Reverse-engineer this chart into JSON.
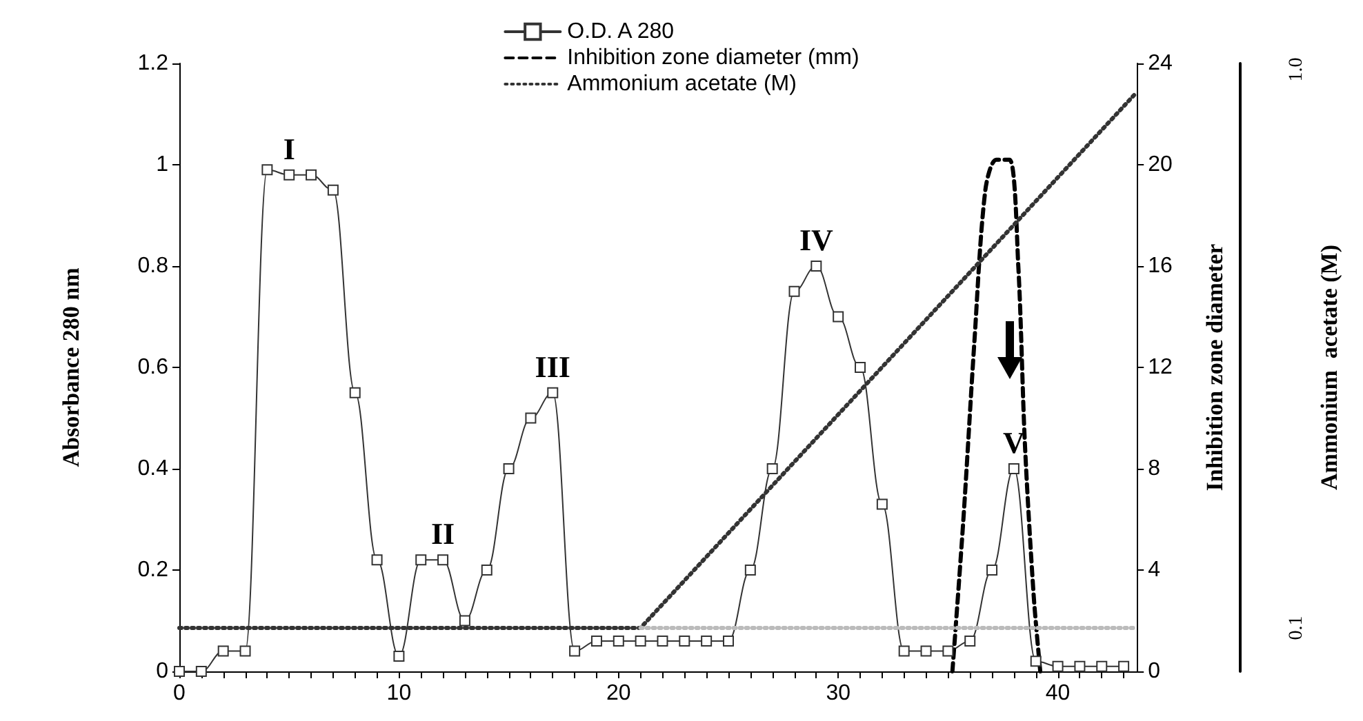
{
  "chart_data": {
    "type": "line",
    "ylabel": "Absorbance 280 nm",
    "y2label": "Inhibition zone diameter",
    "y3label": "Ammonium  acetate (M)",
    "xlim": [
      0,
      43.6
    ],
    "xticks": [
      0,
      10,
      20,
      30,
      40
    ],
    "ylim": [
      0,
      1.2
    ],
    "yticks": [
      0,
      0.2,
      0.4,
      0.6,
      0.8,
      1,
      1.2
    ],
    "y2lim": [
      0,
      24
    ],
    "y2ticks": [
      0,
      4,
      8,
      12,
      16,
      20,
      24
    ],
    "y3lim": [
      0.03,
      1.01
    ],
    "y3ticks": [
      {
        "value": 0.1,
        "label": "0.1"
      },
      {
        "value": 1,
        "label": "1.0"
      }
    ],
    "legend": "top",
    "grid": false,
    "series": [
      {
        "name": "O.D. A 280",
        "color": "#333333",
        "marker": "square",
        "line_style": "solid",
        "x": [
          0,
          1,
          2,
          3,
          4,
          5,
          6,
          7,
          8,
          9,
          10,
          11,
          12,
          13,
          14,
          15,
          16,
          17,
          18,
          19,
          20,
          21,
          22,
          23,
          24,
          25,
          26,
          27,
          28,
          29,
          30,
          31,
          32,
          33,
          34,
          35,
          36,
          37,
          38,
          39,
          40,
          41,
          42,
          43
        ],
        "values": [
          0,
          0,
          0.04,
          0.04,
          0.99,
          0.98,
          0.98,
          0.95,
          0.55,
          0.22,
          0.03,
          0.22,
          0.22,
          0.1,
          0.2,
          0.4,
          0.5,
          0.55,
          0.04,
          0.06,
          0.06,
          0.06,
          0.06,
          0.06,
          0.06,
          0.06,
          0.2,
          0.4,
          0.75,
          0.8,
          0.7,
          0.6,
          0.33,
          0.04,
          0.04,
          0.04,
          0.06,
          0.2,
          0.4,
          0.02,
          0.01,
          0.01,
          0.01,
          0.01
        ]
      },
      {
        "name": "Inhibition zone diameter (mm)",
        "color": "#000000",
        "marker": "none",
        "line_style": "dashed",
        "axis": "y2",
        "x": [
          35.2,
          35.7,
          36.2,
          36.7,
          37.2,
          37.8,
          38.2,
          38.5,
          38.9,
          39.2
        ],
        "values": [
          0,
          6,
          13,
          19,
          20.2,
          20.2,
          16,
          9,
          3,
          0
        ]
      },
      {
        "name": "Ammonium acetate (M)",
        "color": "#333333",
        "marker": "none",
        "line_style": "dotted",
        "axis": "y3",
        "x": [
          0,
          21,
          43.5
        ],
        "values": [
          0.1,
          0.1,
          0.96
        ]
      },
      {
        "color": "#bbbbbb",
        "marker": "none",
        "line_style": "dotted",
        "axis": "y3",
        "x": [
          21,
          43.5
        ],
        "values": [
          0.1,
          0.1
        ]
      }
    ],
    "annotations": [
      {
        "text": "I",
        "x": 5,
        "y": 0.98
      },
      {
        "text": "II",
        "x": 12,
        "y": 0.22
      },
      {
        "text": "III",
        "x": 17,
        "y": 0.55
      },
      {
        "text": "IV",
        "x": 29,
        "y": 0.8
      },
      {
        "text": "V",
        "x": 38,
        "y": 0.4
      }
    ]
  }
}
